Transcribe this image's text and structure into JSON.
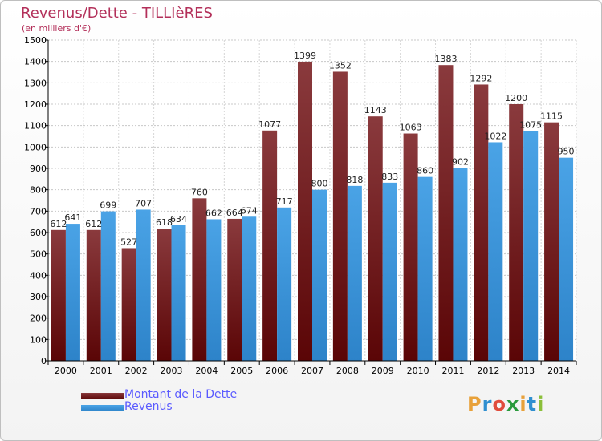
{
  "title": "Revenus/Dette - TILLIèRES",
  "subtitle": "(en milliers d'€)",
  "colors": {
    "debt_top": "#8a3a3d",
    "debt_bottom": "#5a0506",
    "revenue_top": "#4aa3e6",
    "revenue_bottom": "#2d83c9",
    "title": "#b3305a",
    "legend_text": "#5a5aff"
  },
  "logo": {
    "letters": [
      "P",
      "r",
      "o",
      "x",
      "i",
      "t",
      "i"
    ],
    "colors": [
      "#e8a13a",
      "#2f8fd0",
      "#e04c3c",
      "#2a9a3c",
      "#e8a13a",
      "#2f8fd0",
      "#8bbf3a"
    ]
  },
  "chart_data": {
    "type": "bar",
    "title": "Revenus/Dette - TILLIèRES",
    "subtitle": "(en milliers d'€)",
    "categories": [
      "2000",
      "2001",
      "2002",
      "2003",
      "2004",
      "2005",
      "2006",
      "2007",
      "2008",
      "2009",
      "2010",
      "2011",
      "2012",
      "2013",
      "2014"
    ],
    "series": [
      {
        "name": "Montant de la Dette",
        "values": [
          612,
          612,
          527,
          618,
          760,
          664,
          1077,
          1399,
          1352,
          1143,
          1063,
          1383,
          1292,
          1200,
          1115
        ]
      },
      {
        "name": "Revenus",
        "values": [
          641,
          699,
          707,
          634,
          662,
          674,
          717,
          800,
          818,
          833,
          860,
          902,
          1022,
          1075,
          950
        ]
      }
    ],
    "ylim": [
      0,
      1500
    ],
    "ytick_step": 100,
    "grid": true,
    "legend_position": "bottom-left"
  }
}
